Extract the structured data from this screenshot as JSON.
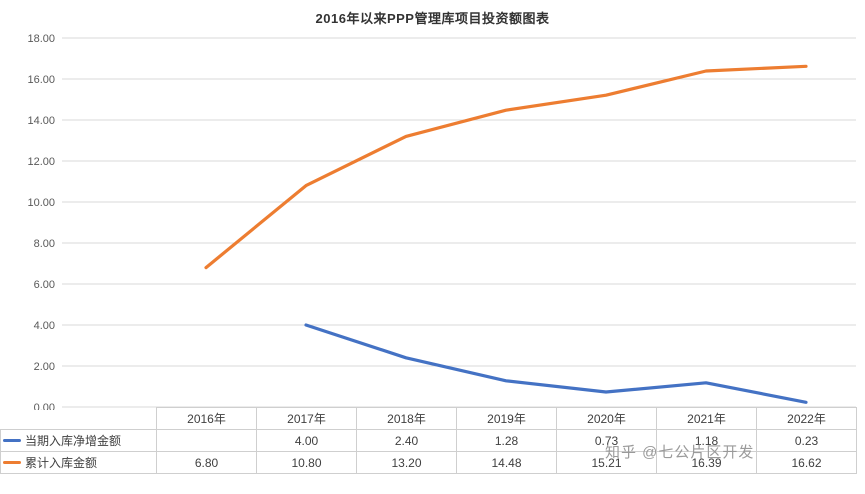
{
  "title": "2016年以来PPP管理库项目投资额图表",
  "watermark": "知乎 @七公片区开发",
  "chart_data": {
    "type": "line",
    "title": "2016年以来PPP管理库项目投资额图表",
    "categories": [
      "2016年",
      "2017年",
      "2018年",
      "2019年",
      "2020年",
      "2021年",
      "2022年"
    ],
    "series": [
      {
        "name": "当期入库净增金额",
        "color": "#4472c4",
        "values": [
          null,
          4.0,
          2.4,
          1.28,
          0.73,
          1.18,
          0.23
        ]
      },
      {
        "name": "累计入库金额",
        "color": "#ed7d31",
        "values": [
          6.8,
          10.8,
          13.2,
          14.48,
          15.21,
          16.39,
          16.62
        ]
      }
    ],
    "xlabel": "",
    "ylabel": "",
    "ylim": [
      0,
      18
    ],
    "ytick_step": 2,
    "ytick_format": "0.00",
    "grid": true,
    "gridline_color": "#d9d9d9",
    "legend_position": "table-left-keys"
  }
}
